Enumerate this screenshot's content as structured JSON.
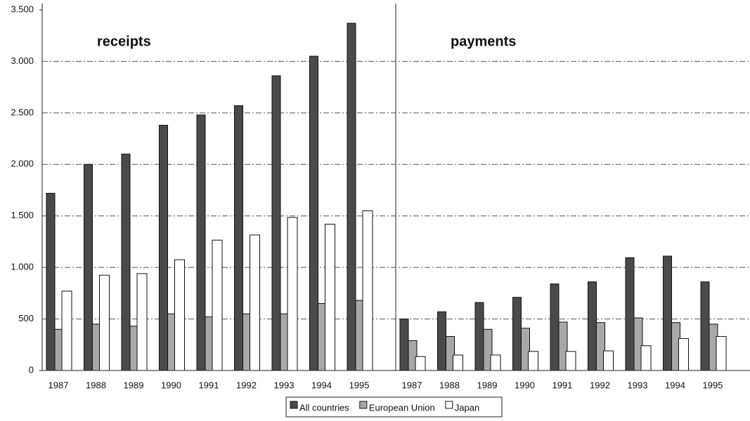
{
  "chart_data": {
    "type": "bar",
    "series": [
      {
        "name": "All countries",
        "color": "#4a4a4a"
      },
      {
        "name": "European Union",
        "color": "#a8a8a8"
      },
      {
        "name": "Japan",
        "color": "#ffffff"
      }
    ],
    "ylim": [
      0,
      3500
    ],
    "yticks": [
      0,
      500,
      {
        "value": 1000,
        "label": "1.000"
      },
      {
        "value": 1500,
        "label": "1.500"
      },
      {
        "value": 2000,
        "label": "2.000"
      },
      {
        "value": 2500,
        "label": "2.500"
      },
      {
        "value": 3000,
        "label": "3.000"
      },
      {
        "value": 3500,
        "label": "3.500"
      }
    ],
    "grid": true,
    "panels": [
      {
        "title": "receipts",
        "categories": [
          "1987",
          "1988",
          "1989",
          "1990",
          "1991",
          "1992",
          "1993",
          "1994",
          "1995"
        ],
        "series": [
          {
            "values": [
              1720,
              2000,
              2100,
              2380,
              2480,
              2570,
              2860,
              3050,
              3370
            ]
          },
          {
            "values": [
              400,
              450,
              430,
              550,
              520,
              550,
              550,
              650,
              680
            ]
          },
          {
            "values": [
              770,
              925,
              940,
              1075,
              1265,
              1315,
              1485,
              1420,
              1550
            ]
          }
        ]
      },
      {
        "title": "payments",
        "categories": [
          "1987",
          "1988",
          "1989",
          "1990",
          "1991",
          "1992",
          "1993",
          "1994",
          "1995"
        ],
        "series": [
          {
            "values": [
              500,
              570,
              660,
              710,
              840,
              860,
              1095,
              1110,
              860
            ]
          },
          {
            "values": [
              290,
              330,
              400,
              410,
              470,
              465,
              510,
              465,
              450
            ]
          },
          {
            "values": [
              135,
              150,
              150,
              185,
              185,
              190,
              240,
              310,
              330
            ]
          }
        ]
      }
    ]
  }
}
